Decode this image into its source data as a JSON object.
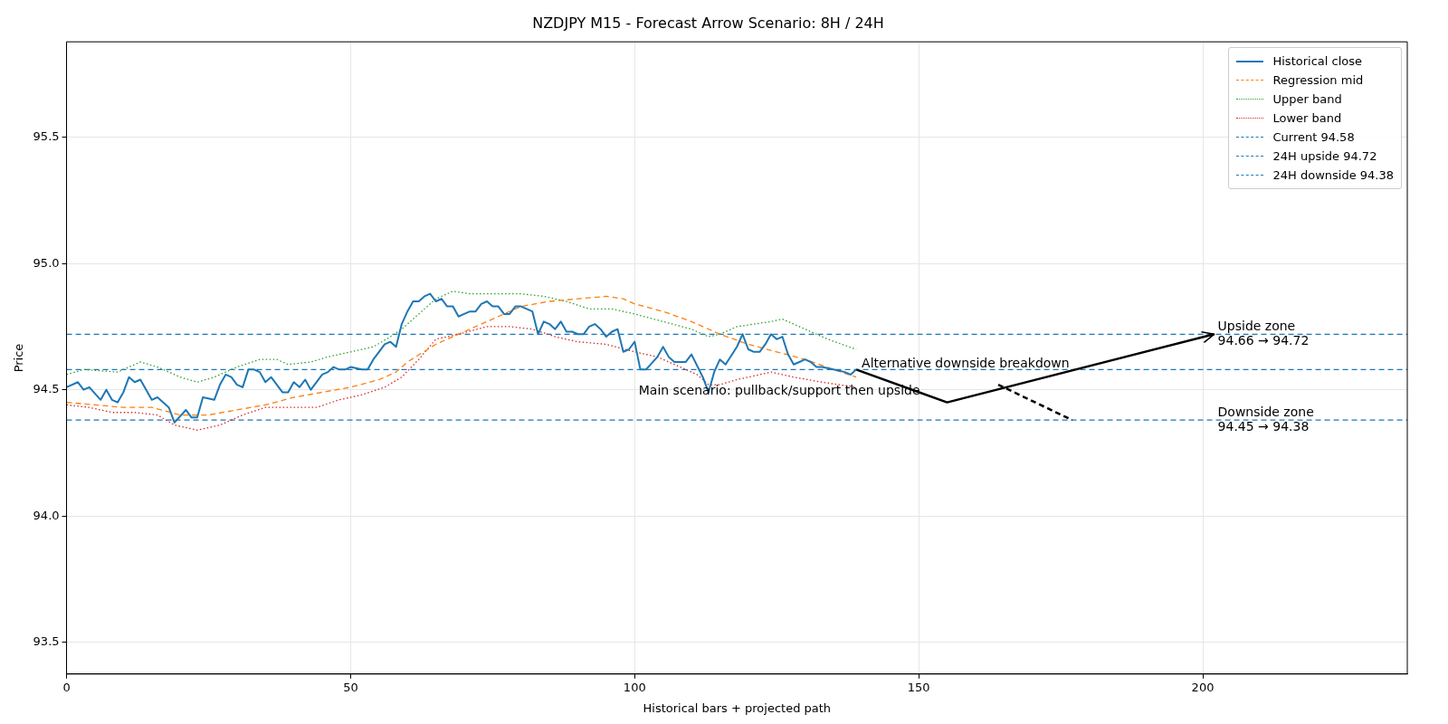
{
  "chart_data": {
    "type": "line",
    "title": "NZDJPY M15 - Forecast Arrow Scenario: 8H / 24H",
    "xlabel": "Historical bars + projected path",
    "ylabel": "Price",
    "xlim": [
      0,
      236
    ],
    "xticks": [
      0,
      50,
      100,
      150,
      200
    ],
    "ylim": [
      93.374,
      95.878
    ],
    "yticks": [
      {
        "value": 93.5,
        "label": "93.5"
      },
      {
        "value": 94,
        "label": "94.0"
      },
      {
        "value": 94.5,
        "label": "94.5"
      },
      {
        "value": 95,
        "label": "95.0"
      },
      {
        "value": 95.5,
        "label": "95.5"
      }
    ],
    "grid": true,
    "legend": "top right",
    "series": [
      {
        "name": "Historical close",
        "color": "#1f77b4",
        "line_style": "solid",
        "x": [
          0,
          2,
          3,
          4,
          6,
          7,
          8,
          9,
          10,
          11,
          12,
          13,
          15,
          16,
          18,
          19,
          21,
          22,
          23,
          24,
          26,
          27,
          28,
          29,
          30,
          31,
          32,
          33,
          34,
          35,
          36,
          38,
          39,
          40,
          41,
          42,
          43,
          45,
          46,
          47,
          48,
          49,
          50,
          52,
          53,
          54,
          55,
          56,
          57,
          58,
          59,
          60,
          61,
          62,
          63,
          64,
          65,
          66,
          67,
          68,
          69,
          70,
          71,
          72,
          73,
          74,
          75,
          76,
          77,
          78,
          79,
          80,
          82,
          83,
          84,
          85,
          86,
          87,
          88,
          89,
          90,
          91,
          92,
          93,
          94,
          95,
          96,
          97,
          98,
          99,
          100,
          101,
          102,
          104,
          105,
          106,
          107,
          108,
          109,
          110,
          112,
          113,
          114,
          115,
          116,
          118,
          119,
          120,
          121,
          122,
          123,
          124,
          125,
          126,
          127,
          128,
          129,
          130,
          131,
          132,
          133,
          135,
          137,
          138,
          139
        ],
        "values": [
          94.51,
          94.53,
          94.5,
          94.51,
          94.46,
          94.5,
          94.46,
          94.45,
          94.49,
          94.55,
          94.53,
          94.54,
          94.46,
          94.47,
          94.43,
          94.37,
          94.42,
          94.39,
          94.39,
          94.47,
          94.46,
          94.52,
          94.56,
          94.55,
          94.52,
          94.51,
          94.58,
          94.58,
          94.57,
          94.53,
          94.55,
          94.49,
          94.49,
          94.53,
          94.51,
          94.54,
          94.5,
          94.56,
          94.57,
          94.59,
          94.58,
          94.58,
          94.59,
          94.58,
          94.58,
          94.62,
          94.65,
          94.68,
          94.69,
          94.67,
          94.76,
          94.81,
          94.85,
          94.85,
          94.87,
          94.88,
          94.85,
          94.86,
          94.83,
          94.83,
          94.79,
          94.8,
          94.81,
          94.81,
          94.84,
          94.85,
          94.83,
          94.83,
          94.8,
          94.8,
          94.83,
          94.83,
          94.81,
          94.72,
          94.77,
          94.76,
          94.74,
          94.77,
          94.73,
          94.73,
          94.72,
          94.72,
          94.75,
          94.76,
          94.74,
          94.71,
          94.73,
          94.74,
          94.65,
          94.66,
          94.69,
          94.58,
          94.58,
          94.63,
          94.67,
          94.63,
          94.61,
          94.61,
          94.61,
          94.64,
          94.55,
          94.49,
          94.57,
          94.62,
          94.6,
          94.67,
          94.72,
          94.66,
          94.65,
          94.65,
          94.68,
          94.72,
          94.7,
          94.71,
          94.64,
          94.6,
          94.61,
          94.62,
          94.61,
          94.59,
          94.59,
          94.58,
          94.57,
          94.56,
          94.58
        ]
      },
      {
        "name": "Regression mid",
        "color": "#ff7f0e",
        "line_style": "dashed",
        "x": [
          0,
          5,
          10,
          15,
          20,
          25,
          30,
          35,
          40,
          45,
          50,
          55,
          58,
          60,
          65,
          70,
          75,
          80,
          85,
          90,
          95,
          98,
          100,
          105,
          110,
          115,
          120,
          125,
          130,
          135,
          139
        ],
        "values": [
          94.45,
          94.44,
          94.43,
          94.43,
          94.4,
          94.4,
          94.42,
          94.44,
          94.47,
          94.49,
          94.51,
          94.54,
          94.57,
          94.61,
          94.68,
          94.73,
          94.78,
          94.83,
          94.85,
          94.86,
          94.87,
          94.86,
          94.84,
          94.81,
          94.77,
          94.72,
          94.68,
          94.65,
          94.62,
          94.58,
          94.55
        ]
      },
      {
        "name": "Upper band",
        "color": "#2ca02c",
        "line_style": "dotted",
        "x": [
          0,
          3,
          9,
          13,
          16,
          20,
          23,
          26,
          30,
          34,
          37,
          39,
          43,
          46,
          50,
          54,
          57,
          59,
          62,
          65,
          68,
          71,
          75,
          80,
          84,
          88,
          92,
          96,
          100,
          105,
          110,
          113,
          115,
          118,
          121,
          124,
          126,
          130,
          134,
          139
        ],
        "values": [
          94.56,
          94.58,
          94.57,
          94.61,
          94.59,
          94.55,
          94.53,
          94.55,
          94.59,
          94.62,
          94.62,
          94.6,
          94.61,
          94.63,
          94.65,
          94.67,
          94.71,
          94.74,
          94.8,
          94.86,
          94.89,
          94.88,
          94.88,
          94.88,
          94.87,
          94.85,
          94.82,
          94.82,
          94.8,
          94.77,
          94.74,
          94.71,
          94.72,
          94.75,
          94.76,
          94.77,
          94.78,
          94.74,
          94.7,
          94.66
        ]
      },
      {
        "name": "Lower band",
        "color": "#d62728",
        "line_style": "dotted",
        "x": [
          0,
          4,
          8,
          12,
          16,
          19,
          23,
          27,
          31,
          35,
          39,
          44,
          48,
          52,
          56,
          59,
          62,
          65,
          69,
          74,
          78,
          82,
          86,
          90,
          95,
          100,
          104,
          108,
          111,
          113,
          115,
          118,
          124,
          128,
          133,
          139
        ],
        "values": [
          94.44,
          94.43,
          94.41,
          94.41,
          94.4,
          94.36,
          94.34,
          94.36,
          94.4,
          94.43,
          94.43,
          94.43,
          94.46,
          94.48,
          94.51,
          94.55,
          94.62,
          94.7,
          94.72,
          94.75,
          94.75,
          94.74,
          94.71,
          94.69,
          94.68,
          94.65,
          94.63,
          94.59,
          94.56,
          94.52,
          94.52,
          94.54,
          94.57,
          94.55,
          94.53,
          94.51
        ]
      },
      {
        "color": "#000000",
        "line_style": "solid",
        "x": [
          139,
          155,
          202
        ],
        "values": [
          94.58,
          94.45,
          94.72
        ]
      },
      {
        "color": "#000000",
        "line_style": "dashed",
        "x": [
          164,
          177
        ],
        "values": [
          94.52,
          94.38
        ]
      }
    ],
    "ref_lines": [
      {
        "axis": "y",
        "value": 94.58,
        "label": "Current 94.58",
        "color": "#1f77b4",
        "line_style": "dashed"
      },
      {
        "axis": "y",
        "value": 94.72,
        "label": "24H upside 94.72",
        "color": "#1f77b4",
        "line_style": "dashed"
      },
      {
        "axis": "y",
        "value": 94.38,
        "label": "24H downside 94.38",
        "color": "#1f77b4",
        "line_style": "dashed"
      }
    ],
    "annotations": [
      "Main scenario: pullback/support then upside",
      "Alternative downside breakdown",
      {
        "text": "Upside zone\n94.66 → 94.72",
        "x": 202,
        "y": 94.72
      },
      {
        "text": "Downside zone\n94.45 → 94.38",
        "x": 202,
        "y": 94.38
      }
    ]
  }
}
